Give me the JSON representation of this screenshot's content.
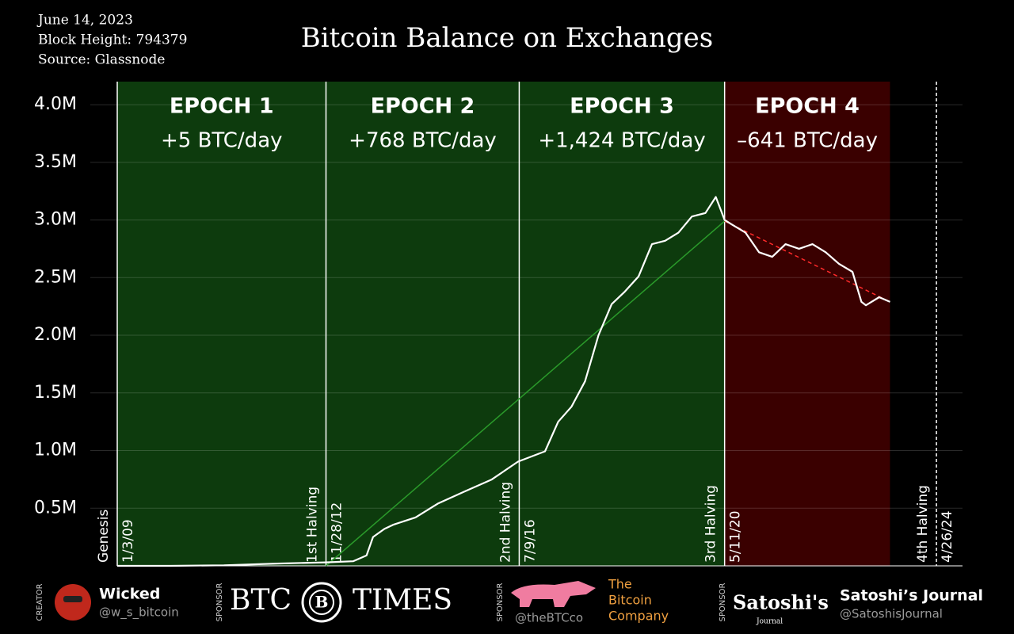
{
  "header": {
    "date": "June 14, 2023",
    "block_height": "Block Height: 794379",
    "source": "Source: Glassnode"
  },
  "chart_data": {
    "type": "line",
    "title": "Bitcoin Balance on Exchanges",
    "xlim": [
      "2009-01-03",
      "2024-10-21"
    ],
    "ylim": [
      0,
      4200000
    ],
    "yticks": [
      {
        "value": 500000,
        "label": "0.5M"
      },
      {
        "value": 1000000,
        "label": "1.0M"
      },
      {
        "value": 1500000,
        "label": "1.5M"
      },
      {
        "value": 2000000,
        "label": "2.0M"
      },
      {
        "value": 2500000,
        "label": "2.5M"
      },
      {
        "value": 3000000,
        "label": "3.0M"
      },
      {
        "value": 3500000,
        "label": "3.5M"
      },
      {
        "value": 4000000,
        "label": "4.0M"
      }
    ],
    "grid": true,
    "epochs": [
      {
        "title": "EPOCH 1",
        "rate": "+5 BTC/day",
        "color": "#0d3b0d"
      },
      {
        "title": "EPOCH 2",
        "rate": "+768 BTC/day",
        "color": "#0d3b0d"
      },
      {
        "title": "EPOCH 3",
        "rate": "+1,424 BTC/day",
        "color": "#0d3b0d"
      },
      {
        "title": "EPOCH 4",
        "rate": "–641 BTC/day",
        "color": "#3a0000"
      }
    ],
    "events": [
      {
        "name": "Genesis",
        "date": "1/3/09",
        "dashed": false
      },
      {
        "name": "1st Halving",
        "date": "11/28/12",
        "dashed": false
      },
      {
        "name": "2nd Halving",
        "date": "7/9/16",
        "dashed": false
      },
      {
        "name": "3rd Halving",
        "date": "5/11/20",
        "dashed": false
      },
      {
        "name": "4th Halving",
        "date": "4/26/24",
        "dashed": true
      }
    ],
    "trend_lines": [
      {
        "color": "#2a9a2a",
        "dashed": false,
        "x": [
          "2012-11-28",
          "2020-05-11"
        ],
        "values": [
          0,
          2990000
        ]
      },
      {
        "color": "#ff2a2a",
        "dashed": true,
        "x": [
          "2020-05-11",
          "2023-06-14"
        ],
        "values": [
          2990000,
          2290000
        ]
      }
    ],
    "series": [
      {
        "color": "#ffffff",
        "x": [
          "2009-01-03",
          "2010-01-01",
          "2011-01-01",
          "2012-01-01",
          "2012-11-28",
          "2013-06-01",
          "2013-09-01",
          "2013-10-15",
          "2014-01-01",
          "2014-03-01",
          "2014-08-01",
          "2015-01-01",
          "2015-07-01",
          "2016-01-01",
          "2016-07-01",
          "2017-01-01",
          "2017-04-01",
          "2017-07-01",
          "2017-10-01",
          "2018-01-01",
          "2018-04-01",
          "2018-07-01",
          "2018-10-01",
          "2019-01-01",
          "2019-04-01",
          "2019-07-01",
          "2019-10-01",
          "2020-01-01",
          "2020-03-12",
          "2020-05-11",
          "2020-07-01",
          "2020-10-01",
          "2021-01-01",
          "2021-04-01",
          "2021-07-01",
          "2021-10-01",
          "2022-01-01",
          "2022-04-01",
          "2022-07-01",
          "2022-10-01",
          "2022-12-01",
          "2023-01-01",
          "2023-04-01",
          "2023-06-14"
        ],
        "values": [
          0,
          0,
          5000,
          20000,
          30000,
          40000,
          90000,
          250000,
          320000,
          356000,
          420000,
          540000,
          644000,
          747000,
          904000,
          993000,
          1250000,
          1380000,
          1600000,
          2000000,
          2270000,
          2380000,
          2510000,
          2790000,
          2820000,
          2890000,
          3030000,
          3060000,
          3200000,
          3000000,
          2960000,
          2890000,
          2720000,
          2680000,
          2790000,
          2750000,
          2790000,
          2720000,
          2620000,
          2550000,
          2290000,
          2260000,
          2330000,
          2290000
        ]
      }
    ]
  },
  "footer": {
    "sponsors": [
      {
        "role": "CREATOR",
        "name": "Wicked",
        "handle": "@w_s_bitcoin"
      },
      {
        "role": "SPONSOR",
        "logo": [
          "BTC",
          "B",
          "TIMES"
        ]
      },
      {
        "role": "SPONSOR",
        "handle": "@theBTCco",
        "logo": [
          "The",
          "Bitcoin",
          "Company"
        ]
      },
      {
        "role": "SPONSOR",
        "logo": [
          "Satoshi's",
          "Journal"
        ],
        "name": "Satoshi’s Journal",
        "handle": "@SatoshisJournal"
      }
    ]
  }
}
